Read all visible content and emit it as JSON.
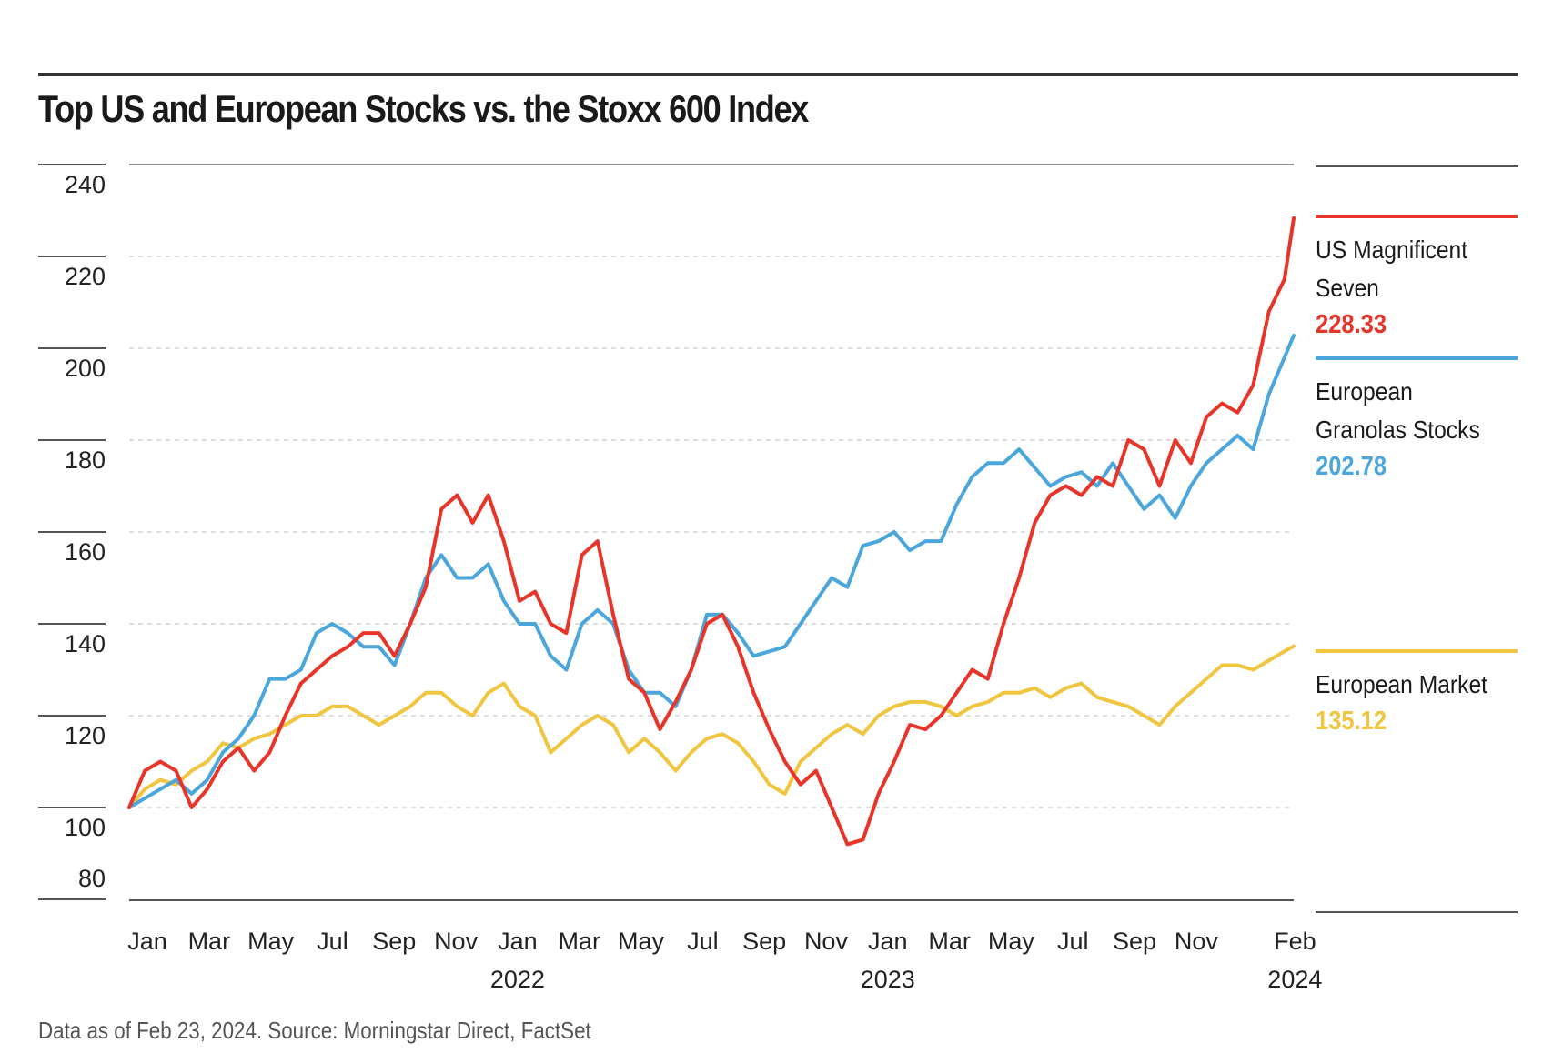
{
  "chart_data": {
    "type": "line",
    "title": "Top US and European Stocks vs. the Stoxx 600 Index",
    "xlabel": "",
    "ylabel": "",
    "ylim": [
      80,
      240
    ],
    "y_ticks": [
      240,
      220,
      200,
      180,
      160,
      140,
      120,
      100,
      80
    ],
    "grid": true,
    "legend_position": "right",
    "x_start": "2021-01-01",
    "x_end": "2024-02-23",
    "x_ticks": [
      {
        "label": "Jan",
        "month_index": 0
      },
      {
        "label": "Mar",
        "month_index": 2
      },
      {
        "label": "May",
        "month_index": 4
      },
      {
        "label": "Jul",
        "month_index": 6
      },
      {
        "label": "Sep",
        "month_index": 8
      },
      {
        "label": "Nov",
        "month_index": 10
      },
      {
        "label": "Jan",
        "month_index": 12,
        "year": "2022"
      },
      {
        "label": "Mar",
        "month_index": 14
      },
      {
        "label": "May",
        "month_index": 16
      },
      {
        "label": "Jul",
        "month_index": 18
      },
      {
        "label": "Sep",
        "month_index": 20
      },
      {
        "label": "Nov",
        "month_index": 22
      },
      {
        "label": "Jan",
        "month_index": 24,
        "year": "2023"
      },
      {
        "label": "Mar",
        "month_index": 26
      },
      {
        "label": "May",
        "month_index": 28
      },
      {
        "label": "Jul",
        "month_index": 30
      },
      {
        "label": "Sep",
        "month_index": 32
      },
      {
        "label": "Nov",
        "month_index": 34
      },
      {
        "label": "Feb",
        "month_index": 37.2,
        "year": "2024"
      }
    ],
    "x_step_months": 0.5,
    "series": [
      {
        "name": "US Magnificent Seven",
        "legend_line1": "US Magnificent",
        "legend_line2": "Seven",
        "last_value": "228.33",
        "color": "#e8352a",
        "values": [
          100,
          108,
          110,
          108,
          100,
          104,
          110,
          113,
          108,
          112,
          120,
          127,
          130,
          133,
          135,
          138,
          138,
          133,
          140,
          148,
          165,
          168,
          162,
          168,
          158,
          145,
          147,
          140,
          138,
          155,
          158,
          142,
          128,
          125,
          117,
          123,
          130,
          140,
          142,
          135,
          125,
          117,
          110,
          105,
          108,
          100,
          92,
          93,
          103,
          110,
          118,
          117,
          120,
          125,
          130,
          128,
          140,
          150,
          162,
          168,
          170,
          168,
          172,
          170,
          180,
          178,
          170,
          180,
          175,
          185,
          188,
          186,
          192,
          208,
          215,
          228.33
        ]
      },
      {
        "name": "European Granolas Stocks",
        "legend_line1": "European",
        "legend_line2": "Granolas Stocks",
        "last_value": "202.78",
        "color": "#4ba6dc",
        "values": [
          100,
          102,
          104,
          106,
          103,
          106,
          112,
          115,
          120,
          128,
          128,
          130,
          138,
          140,
          138,
          135,
          135,
          131,
          140,
          150,
          155,
          150,
          150,
          153,
          145,
          140,
          140,
          133,
          130,
          140,
          143,
          140,
          130,
          125,
          125,
          122,
          130,
          142,
          142,
          138,
          133,
          134,
          135,
          140,
          145,
          150,
          148,
          157,
          158,
          160,
          156,
          158,
          158,
          166,
          172,
          175,
          175,
          178,
          174,
          170,
          172,
          173,
          170,
          175,
          170,
          165,
          168,
          163,
          170,
          175,
          178,
          181,
          178,
          190,
          198,
          202.78
        ]
      },
      {
        "name": "European Market",
        "legend_line1": "European Market",
        "legend_line2": "",
        "last_value": "135.12",
        "color": "#f0c53f",
        "values": [
          100,
          104,
          106,
          105,
          108,
          110,
          114,
          113,
          115,
          116,
          118,
          120,
          120,
          122,
          122,
          120,
          118,
          120,
          122,
          125,
          125,
          122,
          120,
          125,
          127,
          122,
          120,
          112,
          115,
          118,
          120,
          118,
          112,
          115,
          112,
          108,
          112,
          115,
          116,
          114,
          110,
          105,
          103,
          110,
          113,
          116,
          118,
          116,
          120,
          122,
          123,
          123,
          122,
          120,
          122,
          123,
          125,
          125,
          126,
          124,
          126,
          127,
          124,
          123,
          122,
          120,
          118,
          122,
          125,
          128,
          131,
          131,
          130,
          132,
          134,
          135.12
        ]
      }
    ]
  },
  "footer": {
    "source": "Data as of Feb 23, 2024. Source: Morningstar Direct, FactSet"
  }
}
